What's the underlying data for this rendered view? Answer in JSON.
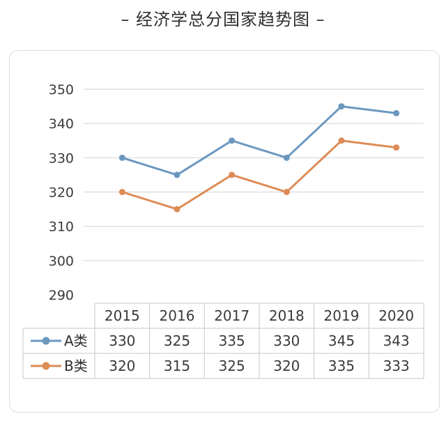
{
  "title": "经济学总分国家趋势图",
  "chart_data": {
    "type": "line",
    "title": "经济学总分国家趋势图",
    "categories": [
      "2015",
      "2016",
      "2017",
      "2018",
      "2019",
      "2020"
    ],
    "ylim": [
      290,
      350
    ],
    "yticks": [
      350,
      340,
      330,
      320,
      310,
      300,
      290
    ],
    "grid": true,
    "legend": "data-table-left",
    "series": [
      {
        "name": "A类",
        "color": "#6b97bf",
        "values": [
          330,
          325,
          335,
          330,
          345,
          343
        ]
      },
      {
        "name": "B类",
        "color": "#dd8c55",
        "values": [
          320,
          315,
          325,
          320,
          335,
          333
        ]
      }
    ]
  }
}
